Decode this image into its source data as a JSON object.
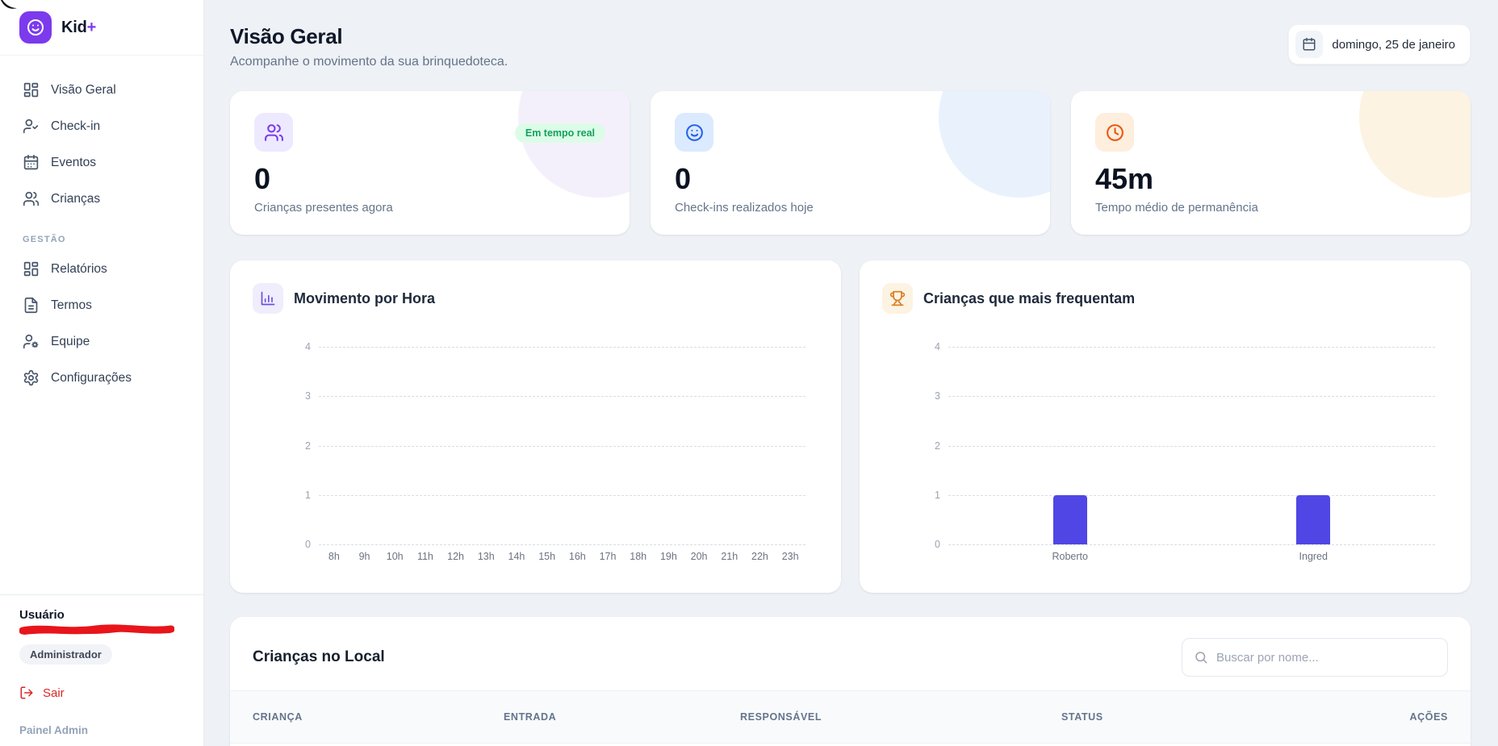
{
  "brand": {
    "name": "Kid",
    "plus": "+"
  },
  "sidebar": {
    "nav_main": [
      {
        "label": "Visão Geral",
        "icon": "dashboard"
      },
      {
        "label": "Check-in",
        "icon": "user-check"
      },
      {
        "label": "Eventos",
        "icon": "calendar"
      },
      {
        "label": "Crianças",
        "icon": "users"
      }
    ],
    "section_label": "GESTÃO",
    "nav_management": [
      {
        "label": "Relatórios",
        "icon": "dashboard"
      },
      {
        "label": "Termos",
        "icon": "file-text"
      },
      {
        "label": "Equipe",
        "icon": "user-gear"
      },
      {
        "label": "Configurações",
        "icon": "gear"
      }
    ],
    "user": {
      "label": "Usuário",
      "name_redacted": true,
      "role": "Administrador",
      "logout": "Sair",
      "footer": "Painel Admin"
    }
  },
  "header": {
    "title": "Visão Geral",
    "subtitle": "Acompanhe o movimento da sua brinquedoteca.",
    "date_badge": "domingo, 25 de janeiro"
  },
  "stats": {
    "cards": [
      {
        "value": "0",
        "label": "Crianças presentes agora",
        "badge": "Em tempo real",
        "icon": "children",
        "icon_color": "#7c3aed",
        "icon_bg": "#ede9fe",
        "deco": "#f4f0fb"
      },
      {
        "value": "0",
        "label": "Check-ins realizados hoje",
        "icon": "smiley",
        "icon_color": "#2563eb",
        "icon_bg": "#dbeafe",
        "deco": "#e9f2fc"
      },
      {
        "value": "45m",
        "label": "Tempo médio de permanência",
        "icon": "clock",
        "icon_color": "#ea580c",
        "icon_bg": "#fdeedd",
        "deco": "#fdf3e2"
      }
    ]
  },
  "chart_data": [
    {
      "type": "bar",
      "title": "Movimento por Hora",
      "categories": [
        "8h",
        "9h",
        "10h",
        "11h",
        "12h",
        "13h",
        "14h",
        "15h",
        "16h",
        "17h",
        "18h",
        "19h",
        "20h",
        "21h",
        "22h",
        "23h"
      ],
      "values": [
        0,
        0,
        0,
        0,
        0,
        0,
        0,
        0,
        0,
        0,
        0,
        0,
        0,
        0,
        0,
        0
      ],
      "xlabel": "",
      "ylabel": "",
      "ylim": [
        0,
        4
      ],
      "yticks": [
        0,
        1,
        2,
        3,
        4
      ],
      "grid": "dashed horizontal",
      "legend": "none",
      "bar_color": "#4f46e5"
    },
    {
      "type": "bar",
      "title": "Crianças que mais frequentam",
      "categories": [
        "Roberto",
        "Ingred"
      ],
      "values": [
        1,
        1
      ],
      "xlabel": "",
      "ylabel": "",
      "ylim": [
        0,
        4
      ],
      "yticks": [
        0,
        1,
        2,
        3,
        4
      ],
      "grid": "dashed horizontal",
      "legend": "none",
      "bar_color": "#4f46e5"
    }
  ],
  "table": {
    "title": "Crianças no Local",
    "search_placeholder": "Buscar por nome...",
    "columns": [
      "CRIANÇA",
      "ENTRADA",
      "RESPONSÁVEL",
      "STATUS",
      "AÇÕES"
    ],
    "rows": []
  }
}
